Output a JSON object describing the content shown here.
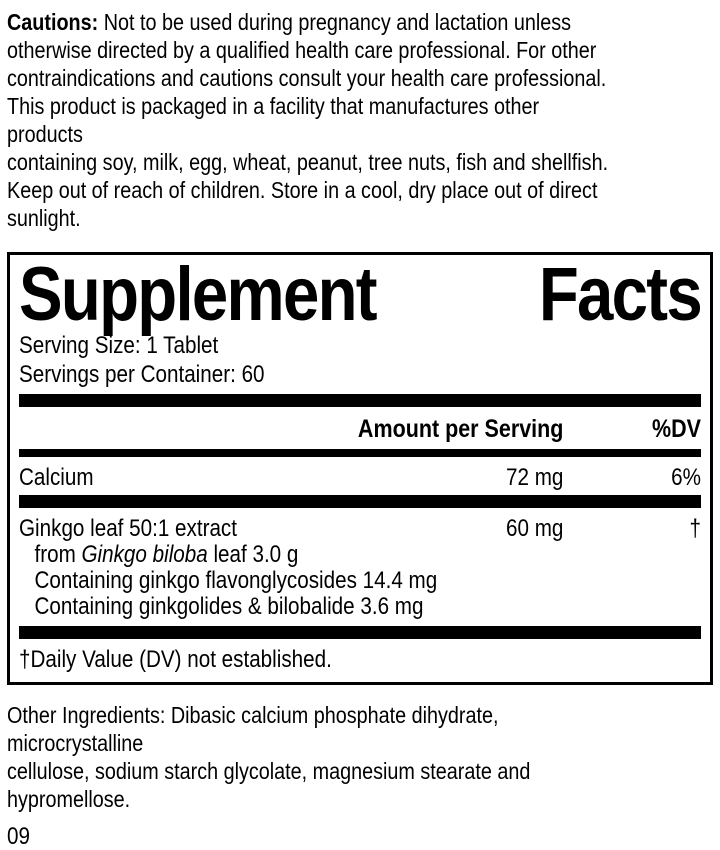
{
  "colors": {
    "ink": "#000000",
    "paper": "#ffffff"
  },
  "cautions": {
    "label": "Cautions:",
    "line1_rest": " Not to be used during pregnancy and lactation unless",
    "lines": [
      "otherwise directed by a qualified health care professional. For other",
      "contraindications and cautions consult your health care professional.",
      "This product is packaged in a facility that manufactures other products",
      "containing soy, milk, egg, wheat, peanut, tree nuts, fish and shellfish.",
      "Keep out of reach of children. Store in a cool, dry place out of direct",
      "sunlight."
    ]
  },
  "panel": {
    "title_words": [
      "Supplement",
      "Facts"
    ],
    "serving_size": "Serving Size: 1 Tablet",
    "servings_per_container": "Servings per Container: 60",
    "columns": {
      "amount": "Amount per Serving",
      "dv": "%DV"
    },
    "rows": [
      {
        "name": "Calcium",
        "amount": "72 mg",
        "dv": "6%"
      },
      {
        "name": "Ginkgo leaf 50:1 extract",
        "amount": "60 mg",
        "dv": "†",
        "details": [
          {
            "prefix": "from ",
            "italic": "Ginkgo biloba",
            "suffix": " leaf 3.0 g"
          },
          {
            "text": "Containing ginkgo flavonglycosides 14.4 mg"
          },
          {
            "text": "Containing ginkgolides & bilobalide 3.6 mg"
          }
        ]
      }
    ],
    "footnote": "†Daily Value (DV) not established."
  },
  "other_ingredients": {
    "lines": [
      "Other Ingredients: Dibasic calcium phosphate dihydrate, microcrystalline",
      "cellulose, sodium starch glycolate, magnesium stearate and hypromellose."
    ]
  },
  "footer_code": "09"
}
